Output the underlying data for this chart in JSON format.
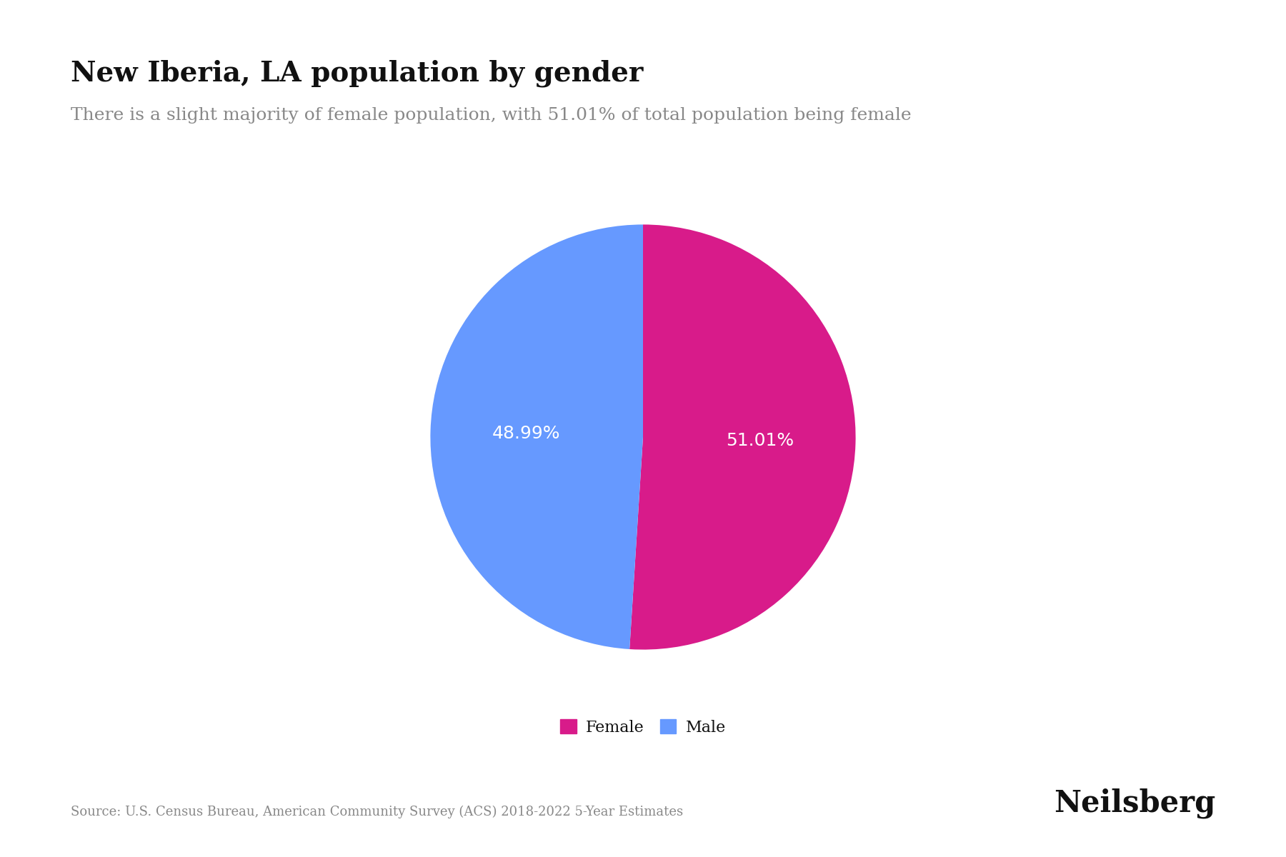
{
  "title": "New Iberia, LA population by gender",
  "subtitle": "There is a slight majority of female population, with 51.01% of total population being female",
  "slices": [
    51.01,
    48.99
  ],
  "labels": [
    "Female",
    "Male"
  ],
  "colors": [
    "#D81B8A",
    "#6699FF"
  ],
  "pct_labels": [
    "51.01%",
    "48.99%"
  ],
  "startangle": 90,
  "legend_labels": [
    "Female",
    "Male"
  ],
  "source_text": "Source: U.S. Census Bureau, American Community Survey (ACS) 2018-2022 5-Year Estimates",
  "brand_text": "Neilsberg",
  "bg_color": "#FFFFFF",
  "text_color_dark": "#111111",
  "text_color_gray": "#888888",
  "pct_label_color": "#FFFFFF",
  "title_fontsize": 28,
  "subtitle_fontsize": 18,
  "pct_fontsize": 18,
  "legend_fontsize": 16,
  "source_fontsize": 13,
  "brand_fontsize": 30
}
